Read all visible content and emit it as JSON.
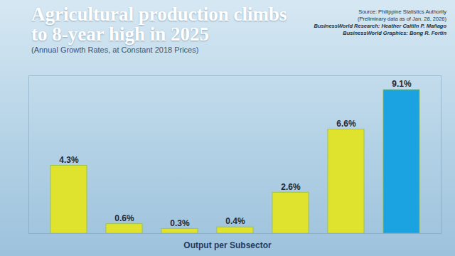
{
  "chart_data": {
    "type": "bar",
    "title": "Agricultural production climbs to 8-year high in 2025",
    "subtitle": "(Annual Growth Rates, at Constant 2018 Prices)",
    "source": [
      "Source: Philippine Statistics Authority",
      "(Preliminary data as of Jan. 28, 2026)",
      "BusinessWorld Research: Heather Caitlin P. Mañago",
      "BusinessWorld Graphics: Bong R. Fortin"
    ],
    "annotations": [
      "Output per Subsector"
    ],
    "categories": [
      null,
      null,
      null,
      null,
      null,
      null,
      null
    ],
    "values": [
      4.3,
      0.6,
      0.3,
      0.4,
      2.6,
      6.6,
      9.1
    ],
    "value_labels": [
      "4.3%",
      "0.6%",
      "0.3%",
      "0.4%",
      "2.6%",
      "6.6%",
      "9.1%"
    ],
    "colors": [
      "#dfe32d",
      "#dfe32d",
      "#dfe32d",
      "#dfe32d",
      "#dfe32d",
      "#dfe32d",
      "#1aa3e0"
    ],
    "ylim": [
      0,
      10
    ],
    "data_labels": true,
    "tick_labels": false,
    "grid": false
  }
}
